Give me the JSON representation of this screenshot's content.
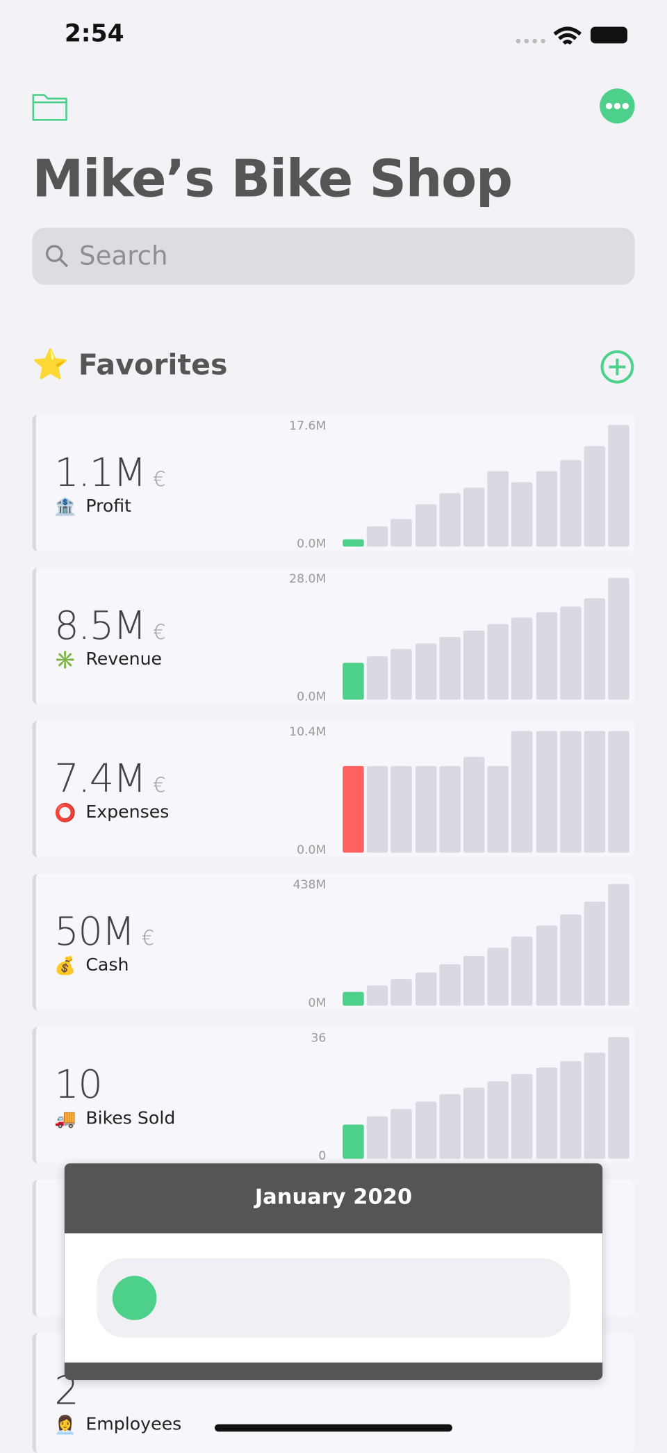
{
  "status_bar": {
    "time": "2:54"
  },
  "header": {
    "title": "Mike’s Bike Shop",
    "search_placeholder": "Search"
  },
  "section": {
    "icon": "⭐",
    "title": "Favorites"
  },
  "cards": [
    {
      "value_text": "1.1M",
      "unit": "€",
      "icon": "🏦",
      "label": "Profit",
      "highlight": "#4cd08a",
      "ylim": [
        0,
        17.6
      ],
      "yticks": [
        {
          "value": 0,
          "label": "0.0M"
        },
        {
          "value": 17.6,
          "label": "17.6M"
        }
      ],
      "bars": [
        1.1,
        2.9,
        4.0,
        6.2,
        7.8,
        8.6,
        11.0,
        9.4,
        11.0,
        12.6,
        14.5,
        17.6
      ]
    },
    {
      "value_text": "8.5M",
      "unit": "€",
      "icon": "✳️",
      "label": "Revenue",
      "highlight": "#4cd08a",
      "ylim": [
        0,
        28.0
      ],
      "yticks": [
        {
          "value": 0,
          "label": "0.0M"
        },
        {
          "value": 28.0,
          "label": "28.0M"
        }
      ],
      "bars": [
        8.5,
        10.0,
        11.6,
        13.0,
        14.4,
        15.9,
        17.3,
        18.8,
        20.2,
        21.5,
        23.3,
        28.0
      ]
    },
    {
      "value_text": "7.4M",
      "unit": "€",
      "icon": "⭕",
      "label": "Expenses",
      "highlight": "#ff6161",
      "ylim": [
        0,
        10.4
      ],
      "yticks": [
        {
          "value": 0,
          "label": "0.0M"
        },
        {
          "value": 10.4,
          "label": "10.4M"
        }
      ],
      "bars": [
        7.4,
        7.4,
        7.4,
        7.4,
        7.4,
        8.2,
        7.4,
        10.4,
        10.4,
        10.4,
        10.4,
        10.4
      ]
    },
    {
      "value_text": "50M",
      "unit": "€",
      "icon": "💰",
      "label": "Cash",
      "highlight": "#4cd08a",
      "ylim": [
        0,
        438
      ],
      "yticks": [
        {
          "value": 0,
          "label": "0M"
        },
        {
          "value": 438,
          "label": "438M"
        }
      ],
      "bars": [
        50,
        72,
        95,
        120,
        148,
        180,
        210,
        250,
        290,
        330,
        375,
        438
      ]
    },
    {
      "value_text": "10",
      "unit": null,
      "icon": "🚚",
      "label": "Bikes Sold",
      "highlight": "#4cd08a",
      "ylim": [
        0,
        36
      ],
      "yticks": [
        0,
        36
      ],
      "bars": [
        10,
        12.5,
        14.8,
        17,
        19,
        21,
        23,
        25,
        27,
        29,
        31.5,
        36
      ]
    }
  ],
  "bottom_card": {
    "value_text": "2",
    "icon": "👩‍💼",
    "label": "Employees"
  },
  "overlay": {
    "title": "January 2020"
  }
}
